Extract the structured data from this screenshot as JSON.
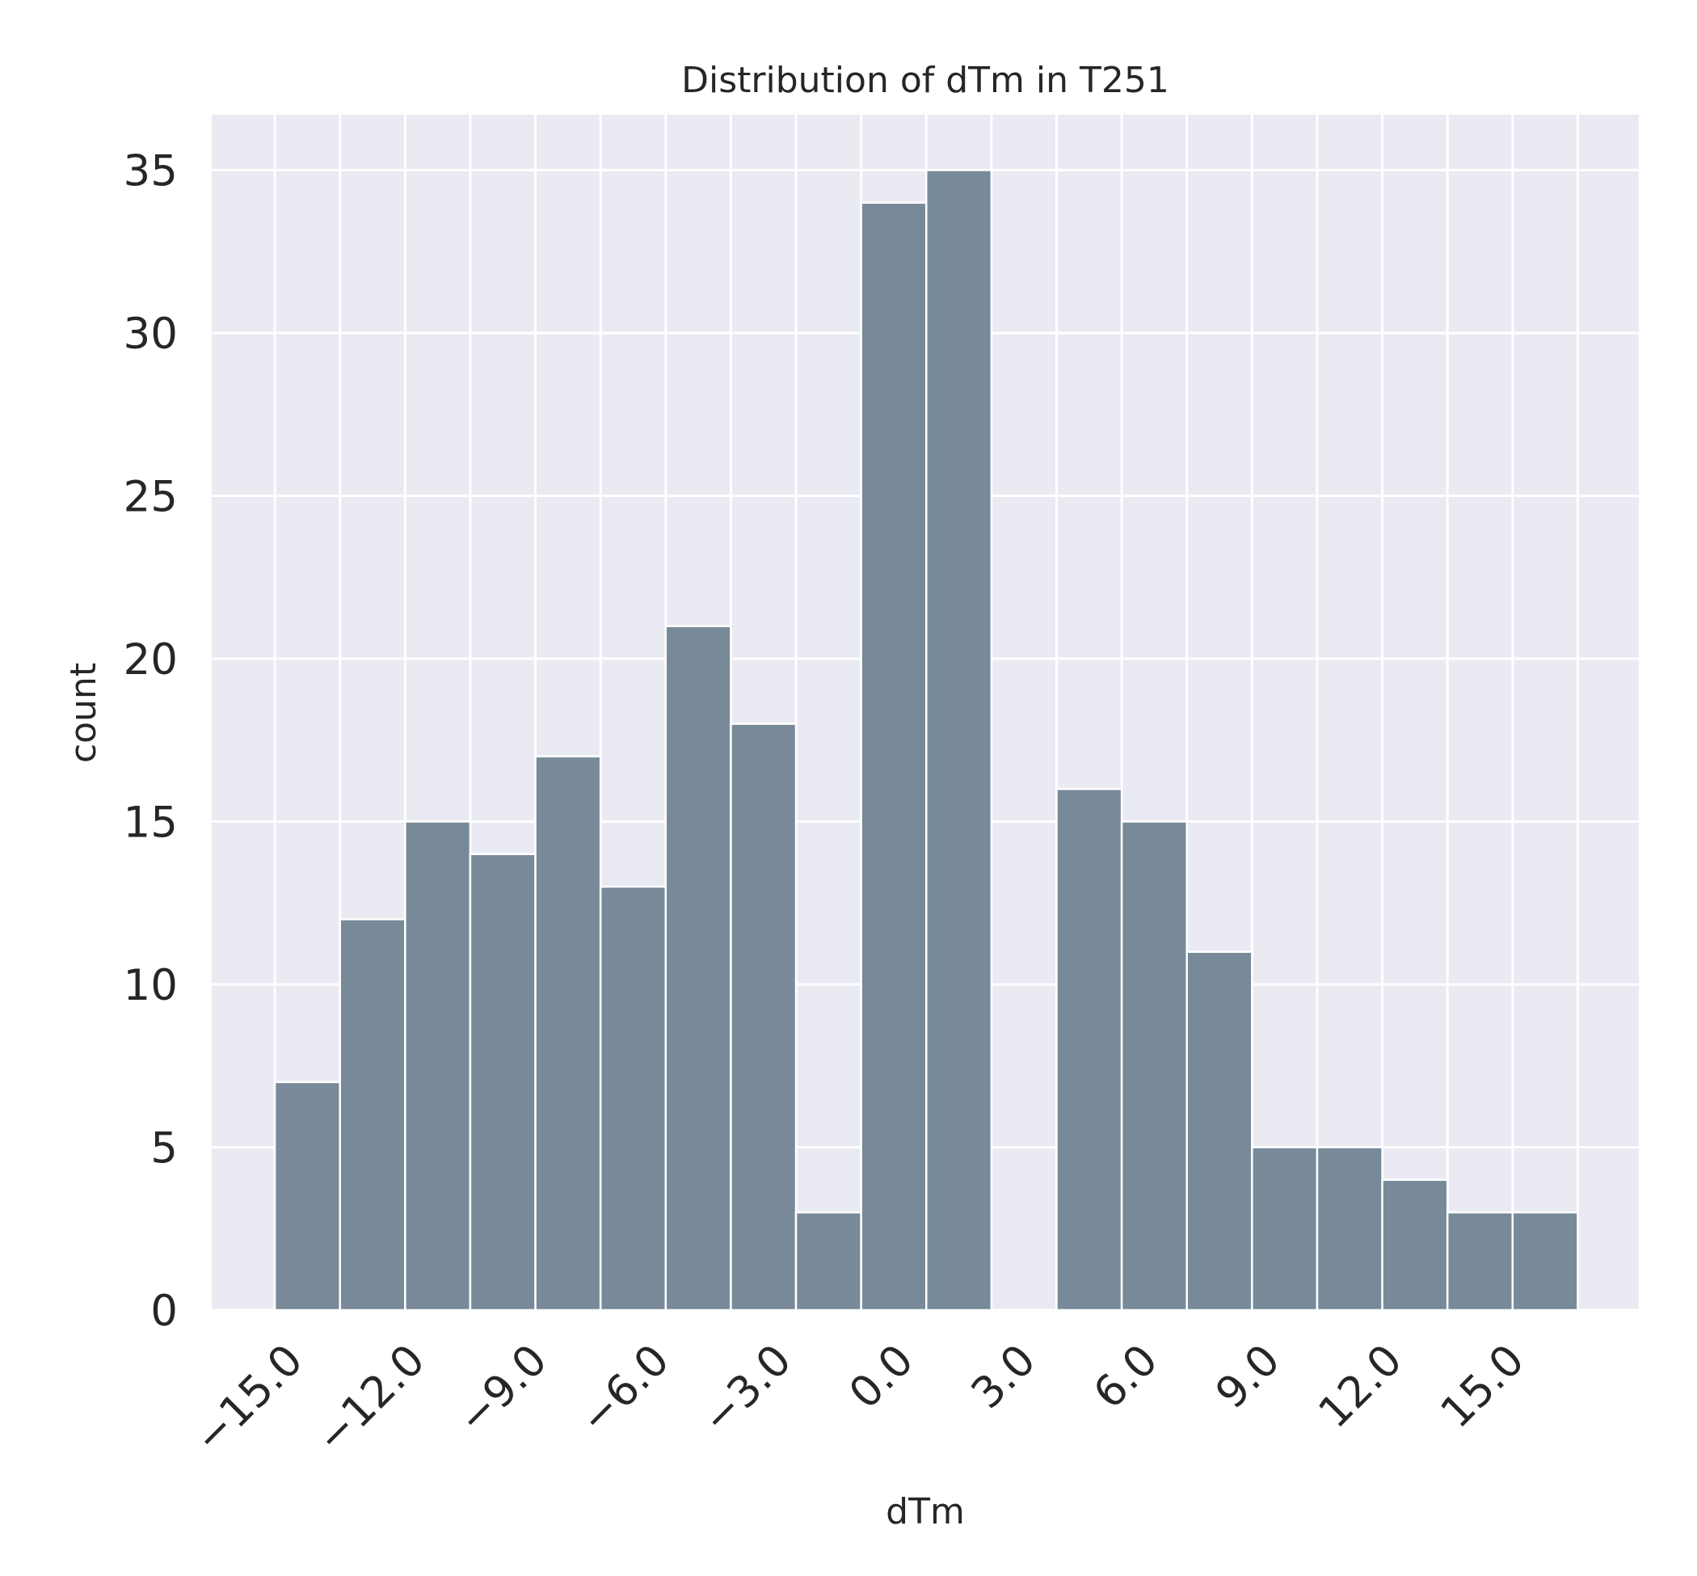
{
  "chart_data": {
    "type": "bar",
    "title": "Distribution of dTm in T251",
    "xlabel": "dTm",
    "ylabel": "count",
    "bin_width": 1.6,
    "bins": [
      {
        "start": -15.2,
        "end": -13.6,
        "count": 7
      },
      {
        "start": -13.6,
        "end": -12.0,
        "count": 12
      },
      {
        "start": -12.0,
        "end": -10.4,
        "count": 15
      },
      {
        "start": -10.4,
        "end": -8.8,
        "count": 14
      },
      {
        "start": -8.8,
        "end": -7.2,
        "count": 17
      },
      {
        "start": -7.2,
        "end": -5.6,
        "count": 13
      },
      {
        "start": -5.6,
        "end": -4.0,
        "count": 21
      },
      {
        "start": -4.0,
        "end": -2.4,
        "count": 18
      },
      {
        "start": -2.4,
        "end": -0.8,
        "count": 3
      },
      {
        "start": -0.8,
        "end": 0.8,
        "count": 34
      },
      {
        "start": 0.8,
        "end": 2.4,
        "count": 35
      },
      {
        "start": 2.4,
        "end": 4.0,
        "count": 0
      },
      {
        "start": 4.0,
        "end": 5.6,
        "count": 16
      },
      {
        "start": 5.6,
        "end": 7.2,
        "count": 15
      },
      {
        "start": 7.2,
        "end": 8.8,
        "count": 11
      },
      {
        "start": 8.8,
        "end": 10.4,
        "count": 5
      },
      {
        "start": 10.4,
        "end": 12.0,
        "count": 5
      },
      {
        "start": 12.0,
        "end": 13.6,
        "count": 4
      },
      {
        "start": 13.6,
        "end": 15.2,
        "count": 3
      },
      {
        "start": 15.2,
        "end": 16.8,
        "count": 3
      }
    ],
    "xlim": [
      -16.75,
      18.3
    ],
    "ylim": [
      0,
      36.7
    ],
    "xticks": [
      -15.0,
      -12.0,
      -9.0,
      -6.0,
      -3.0,
      0.0,
      3.0,
      6.0,
      9.0,
      12.0,
      15.0
    ],
    "xtick_labels": [
      "−15.0",
      "−12.0",
      "−9.0",
      "−6.0",
      "−3.0",
      "0.0",
      "3.0",
      "6.0",
      "9.0",
      "12.0",
      "15.0"
    ],
    "yticks": [
      0,
      5,
      10,
      15,
      20,
      25,
      30,
      35
    ],
    "ytick_labels": [
      "0",
      "5",
      "10",
      "15",
      "20",
      "25",
      "30",
      "35"
    ],
    "grid": true,
    "colors": {
      "bar": "#788a99",
      "plot_background": "#eaeaf2",
      "grid": "#ffffff",
      "text": "#262626"
    }
  }
}
